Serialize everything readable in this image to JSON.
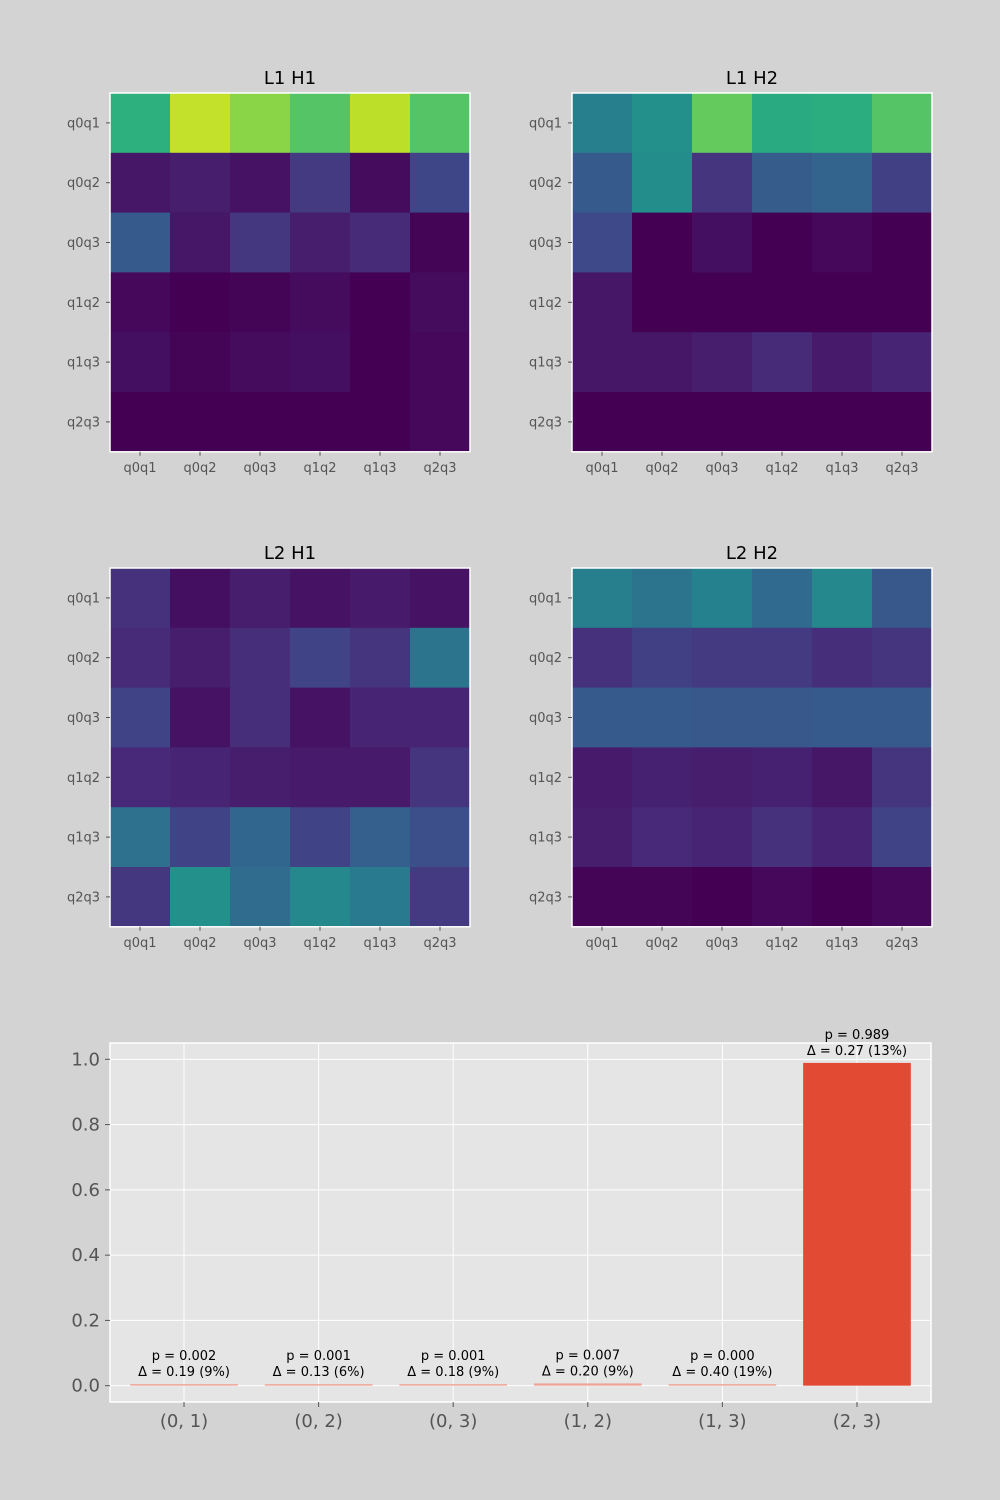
{
  "colors": {
    "figure_background": "#d3d3d3",
    "axes_background": "#e5e5e5",
    "grid": "#ffffff",
    "bar_highlight": "#e24a33",
    "bar_muted": "#eea397",
    "colormap": "viridis"
  },
  "chart_data": [
    {
      "type": "heatmap",
      "title": "L1 H1",
      "row_labels": [
        "q0q1",
        "q0q2",
        "q0q3",
        "q1q2",
        "q1q3",
        "q2q3"
      ],
      "col_labels": [
        "q0q1",
        "q0q2",
        "q0q3",
        "q1q2",
        "q1q3",
        "q2q3"
      ],
      "values": [
        [
          0.63,
          0.91,
          0.82,
          0.73,
          0.9,
          0.73
        ],
        [
          0.06,
          0.08,
          0.05,
          0.17,
          0.03,
          0.21
        ],
        [
          0.28,
          0.06,
          0.16,
          0.08,
          0.12,
          0.01
        ],
        [
          0.02,
          0.0,
          0.01,
          0.03,
          0.0,
          0.03
        ],
        [
          0.04,
          0.01,
          0.03,
          0.04,
          0.0,
          0.02
        ],
        [
          0.0,
          0.0,
          0.0,
          0.0,
          0.0,
          0.02
        ]
      ]
    },
    {
      "type": "heatmap",
      "title": "L1 H2",
      "row_labels": [
        "q0q1",
        "q0q2",
        "q0q3",
        "q1q2",
        "q1q3",
        "q2q3"
      ],
      "col_labels": [
        "q0q1",
        "q0q2",
        "q0q3",
        "q1q2",
        "q1q3",
        "q2q3"
      ],
      "values": [
        [
          0.43,
          0.5,
          0.76,
          0.61,
          0.62,
          0.73
        ],
        [
          0.28,
          0.49,
          0.15,
          0.29,
          0.32,
          0.19
        ],
        [
          0.22,
          0.0,
          0.04,
          0.0,
          0.02,
          0.0
        ],
        [
          0.06,
          0.0,
          0.0,
          0.0,
          0.0,
          0.0
        ],
        [
          0.06,
          0.06,
          0.08,
          0.12,
          0.07,
          0.1
        ],
        [
          0.0,
          0.0,
          0.0,
          0.0,
          0.0,
          0.0
        ]
      ]
    },
    {
      "type": "heatmap",
      "title": "L2 H1",
      "row_labels": [
        "q0q1",
        "q0q2",
        "q0q3",
        "q1q2",
        "q1q3",
        "q2q3"
      ],
      "col_labels": [
        "q0q1",
        "q0q2",
        "q0q3",
        "q1q2",
        "q1q3",
        "q2q3"
      ],
      "values": [
        [
          0.14,
          0.04,
          0.08,
          0.05,
          0.07,
          0.05
        ],
        [
          0.12,
          0.08,
          0.13,
          0.2,
          0.15,
          0.38
        ],
        [
          0.2,
          0.05,
          0.13,
          0.05,
          0.1,
          0.1
        ],
        [
          0.11,
          0.1,
          0.08,
          0.07,
          0.07,
          0.15
        ],
        [
          0.37,
          0.2,
          0.33,
          0.2,
          0.3,
          0.24
        ],
        [
          0.16,
          0.5,
          0.35,
          0.47,
          0.41,
          0.17
        ]
      ]
    },
    {
      "type": "heatmap",
      "title": "L2 H2",
      "row_labels": [
        "q0q1",
        "q0q2",
        "q0q3",
        "q1q2",
        "q1q3",
        "q2q3"
      ],
      "col_labels": [
        "q0q1",
        "q0q2",
        "q0q3",
        "q1q2",
        "q1q3",
        "q2q3"
      ],
      "values": [
        [
          0.43,
          0.38,
          0.44,
          0.34,
          0.47,
          0.27
        ],
        [
          0.14,
          0.19,
          0.17,
          0.17,
          0.13,
          0.15
        ],
        [
          0.28,
          0.28,
          0.27,
          0.27,
          0.28,
          0.28
        ],
        [
          0.07,
          0.09,
          0.08,
          0.09,
          0.06,
          0.15
        ],
        [
          0.08,
          0.11,
          0.1,
          0.14,
          0.1,
          0.2
        ],
        [
          0.01,
          0.01,
          0.0,
          0.02,
          0.0,
          0.02
        ]
      ]
    },
    {
      "type": "bar",
      "categories": [
        "(0, 1)",
        "(0, 2)",
        "(0, 3)",
        "(1, 2)",
        "(1, 3)",
        "(2, 3)"
      ],
      "values": [
        0.002,
        0.001,
        0.001,
        0.007,
        0.0,
        0.989
      ],
      "annotations": [
        [
          "p = 0.002",
          "Δ = 0.19 (9%)"
        ],
        [
          "p = 0.001",
          "Δ = 0.13 (6%)"
        ],
        [
          "p = 0.001",
          "Δ = 0.18 (9%)"
        ],
        [
          "p = 0.007",
          "Δ = 0.20 (9%)"
        ],
        [
          "p = 0.000",
          "Δ = 0.40 (19%)"
        ],
        [
          "p = 0.989",
          "Δ = 0.27 (13%)"
        ]
      ],
      "highlight_index": 5,
      "ylim": [
        -0.05,
        1.05
      ],
      "yticks": [
        0.0,
        0.2,
        0.4,
        0.6,
        0.8,
        1.0
      ],
      "ytick_labels": [
        "0.0",
        "0.2",
        "0.4",
        "0.6",
        "0.8",
        "1.0"
      ],
      "grid": true
    }
  ]
}
